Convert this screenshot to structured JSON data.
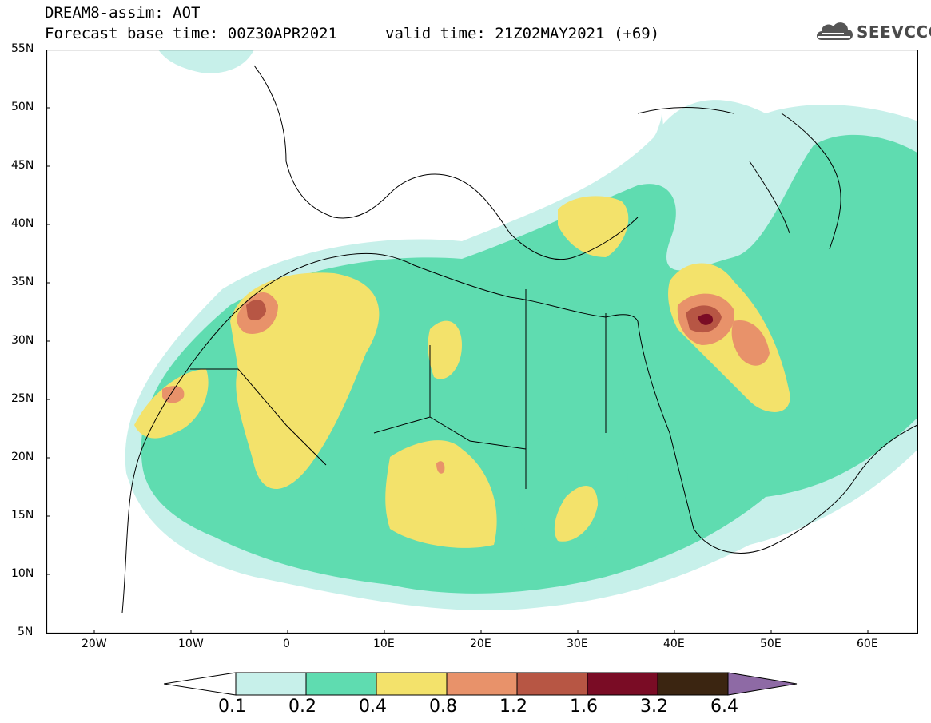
{
  "header": {
    "line1": "DREAM8-assim: AOT",
    "line2": "Forecast base time: 00Z30APR2021",
    "valid": "valid time: 21Z02MAY2021 (+69)"
  },
  "logo": {
    "text": "SEEVCCC",
    "icon": "cloud-icon"
  },
  "axes": {
    "lat_labels": [
      "55N",
      "50N",
      "45N",
      "40N",
      "35N",
      "30N",
      "25N",
      "20N",
      "15N",
      "10N",
      "5N"
    ],
    "lon_labels": [
      "20W",
      "10W",
      "0",
      "10E",
      "20E",
      "30E",
      "40E",
      "50E",
      "60E"
    ]
  },
  "colorbar": {
    "labels": [
      "0.1",
      "0.2",
      "0.4",
      "0.8",
      "1.2",
      "1.6",
      "3.2",
      "6.4"
    ],
    "colors": [
      "#c7f0ea",
      "#5fdcb0",
      "#f3e26b",
      "#e8926a",
      "#b75644",
      "#7a0c25",
      "#3b2511",
      "#8e6aa5"
    ]
  },
  "map": {
    "variable": "AOT",
    "lon_range": [
      -25,
      65
    ],
    "lat_range": [
      5,
      55
    ]
  }
}
